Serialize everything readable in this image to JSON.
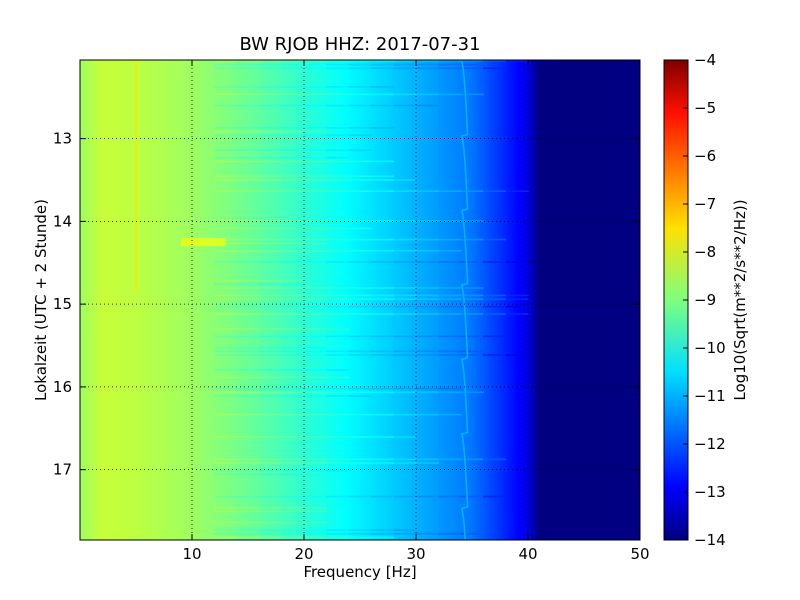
{
  "chart_data": {
    "type": "heatmap",
    "title": "BW RJOB HHZ: 2017-07-31",
    "xlabel": "Frequency [Hz]",
    "ylabel": "Lokalzeit (UTC + 2 Stunde)",
    "xlim": [
      0,
      50
    ],
    "ylim": [
      12.05,
      17.85
    ],
    "y_inverted": true,
    "xticks": [
      10,
      20,
      30,
      40,
      50
    ],
    "yticks": [
      13,
      14,
      15,
      16,
      17
    ],
    "grid": true,
    "colormap": "jet",
    "colorbar": {
      "label": "Log10(Sqrt(m**2/s**2/Hz))",
      "range": [
        -14,
        -4
      ],
      "ticks": [
        -4,
        -5,
        -6,
        -7,
        -8,
        -9,
        -10,
        -11,
        -12,
        -13,
        -14
      ]
    },
    "spectrum_profile": {
      "frequency_hz": [
        0,
        2,
        5,
        10,
        15,
        20,
        25,
        30,
        35,
        38,
        40,
        41,
        50
      ],
      "log10_amplitude": [
        -8.7,
        -8.3,
        -8.4,
        -8.7,
        -9.2,
        -9.8,
        -10.4,
        -11.0,
        -11.6,
        -12.4,
        -13.0,
        -14.0,
        -14.0
      ]
    },
    "features": [
      {
        "label": "narrow line near 5 Hz",
        "frequency_hz": 5,
        "time_start": 12.05,
        "time_end": 14.85,
        "log10_amplitude": -7.5
      },
      {
        "label": "wandering line near 34.5 Hz",
        "frequency_hz": 34.5,
        "time_start": 12.05,
        "time_end": 17.85,
        "log10_amplitude": -11.0
      },
      {
        "label": "broadband event near 14.25",
        "frequency_hz": 11,
        "time_start": 14.2,
        "time_end": 14.3,
        "log10_amplitude": -7.8
      }
    ]
  }
}
